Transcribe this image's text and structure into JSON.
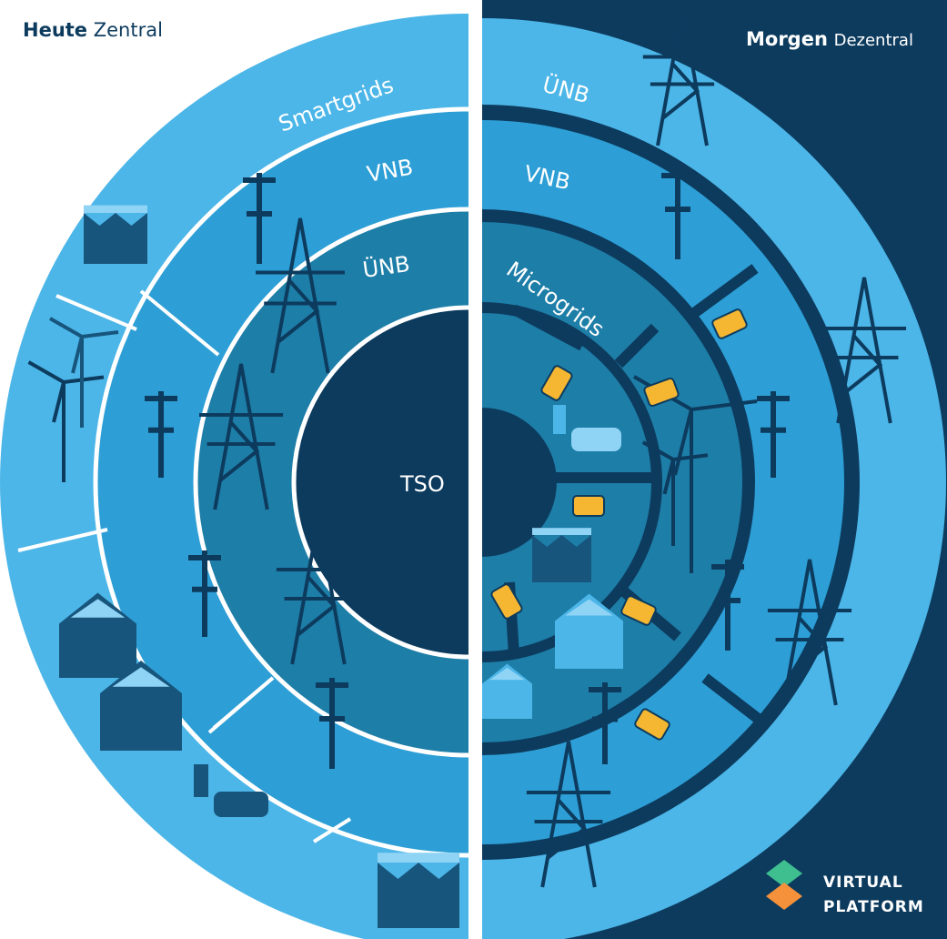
{
  "left": {
    "title_bold": "Heute",
    "title": "Zentral",
    "rings": [
      "Smartgrids",
      "VNB",
      "ÜNB",
      "TSO"
    ]
  },
  "right": {
    "title_bold": "Morgen",
    "title": "Dezentral",
    "rings": [
      "ÜNB",
      "VNB",
      "Microgrids"
    ]
  },
  "logo": [
    "VIRTUAL",
    "PLATFORM"
  ]
}
